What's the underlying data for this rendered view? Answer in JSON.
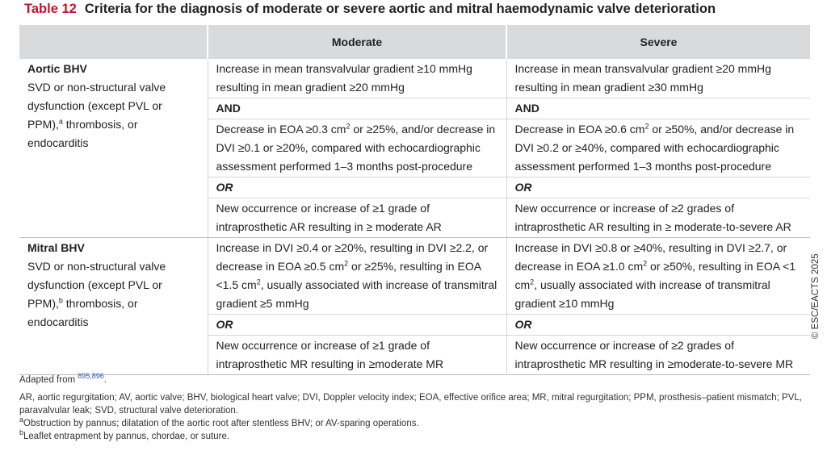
{
  "title": {
    "label": "Table 12",
    "text": "Criteria for the diagnosis of moderate or severe aortic and mitral haemodynamic valve deterioration"
  },
  "table": {
    "headers": [
      "Moderate",
      "Severe"
    ],
    "sections": [
      {
        "name": "Aortic BHV",
        "description": [
          "SVD or non-structural valve dysfunction (except PVL or PPM),",
          {
            "sup": "a"
          },
          " thrombosis, or endocarditis"
        ],
        "rows": [
          {
            "emphasis": "plain",
            "cells": [
              [
                "Increase in mean transvalvular gradient ≥10 mmHg resulting in mean gradient ≥20 mmHg"
              ],
              [
                "Increase in mean transvalvular gradient ≥20 mmHg resulting in mean gradient ≥30 mmHg"
              ]
            ]
          },
          {
            "emphasis": "bold",
            "cells": [
              [
                "AND"
              ],
              [
                "AND"
              ]
            ]
          },
          {
            "emphasis": "plain",
            "cells": [
              [
                "Decrease in EOA ≥0.3 cm",
                {
                  "sup": "2"
                },
                " or ≥25%, and/or decrease in DVI ≥0.1 or ≥20%, compared with echocardiographic assessment performed 1–3 months post-procedure"
              ],
              [
                "Decrease in EOA ≥0.6 cm",
                {
                  "sup": "2"
                },
                " or ≥50%, and/or decrease in DVI ≥0.2 or ≥40%, compared with echocardiographic assessment performed 1–3 months post-procedure"
              ]
            ]
          },
          {
            "emphasis": "bold-italic",
            "cells": [
              [
                "OR"
              ],
              [
                "OR"
              ]
            ]
          },
          {
            "emphasis": "plain",
            "cells": [
              [
                "New occurrence or increase of ≥1 grade of intraprosthetic AR resulting in ≥ moderate AR"
              ],
              [
                "New occurrence or increase of ≥2 grades of intraprosthetic AR resulting in ≥ moderate-to-severe AR"
              ]
            ]
          }
        ]
      },
      {
        "name": "Mitral BHV",
        "description": [
          "SVD or non-structural valve dysfunction (except PVL or PPM),",
          {
            "sup": "b"
          },
          " thrombosis, or endocarditis"
        ],
        "rows": [
          {
            "emphasis": "plain",
            "cells": [
              [
                "Increase in DVI ≥0.4 or ≥20%, resulting in DVI ≥2.2, or decrease in EOA ≥0.5 cm",
                {
                  "sup": "2"
                },
                " or ≥25%, resulting in EOA <1.5 cm",
                {
                  "sup": "2"
                },
                ", usually associated with increase of transmitral gradient ≥5 mmHg"
              ],
              [
                "Increase in DVI ≥0.8 or ≥40%, resulting in DVI ≥2.7, or decrease in EOA ≥1.0 cm",
                {
                  "sup": "2"
                },
                " or ≥50%, resulting in EOA <1 cm",
                {
                  "sup": "2"
                },
                ", usually associated with increase of transmitral gradient ≥10 mmHg"
              ]
            ]
          },
          {
            "emphasis": "bold-italic",
            "cells": [
              [
                "OR"
              ],
              [
                "OR"
              ]
            ]
          },
          {
            "emphasis": "plain",
            "cells": [
              [
                "New occurrence or increase of ≥1 grade of intraprosthetic MR resulting in ≥moderate MR"
              ],
              [
                "New occurrence or increase of ≥2 grades of intraprosthetic MR resulting in ≥moderate-to-severe MR"
              ]
            ]
          }
        ]
      }
    ]
  },
  "footnotes": [
    [
      "Adapted from ",
      {
        "sup": "895,896"
      },
      "."
    ],
    [
      "AR, aortic regurgitation; AV, aortic valve; BHV, biological heart valve; DVI, Doppler velocity index; EOA, effective orifice area; MR, mitral regurgitation; PPM, prosthesis–patient mismatch; PVL, paravalvular leak; SVD, structural valve deterioration."
    ],
    [
      {
        "sup": "a"
      },
      "Obstruction by pannus; dilatation of the aortic root after stentless BHV; or AV-sparing operations."
    ],
    [
      {
        "sup": "b"
      },
      "Leaflet entrapment by pannus, chordae, or suture."
    ]
  ],
  "copyright": "© ESC/EACTS 2025"
}
